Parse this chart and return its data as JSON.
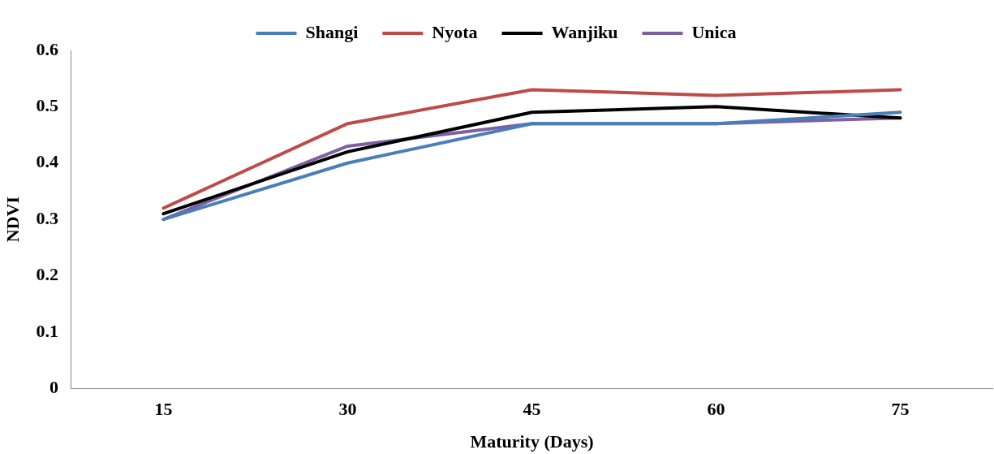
{
  "chart_data": {
    "type": "line",
    "xlabel": "Maturity (Days)",
    "ylabel": "NDVI",
    "categories": [
      "15",
      "30",
      "45",
      "60",
      "75"
    ],
    "series": [
      {
        "name": "Shangi",
        "color": "#4a7ebb",
        "values": [
          0.3,
          0.4,
          0.47,
          0.47,
          0.49
        ]
      },
      {
        "name": "Nyota",
        "color": "#be4b48",
        "values": [
          0.32,
          0.47,
          0.53,
          0.52,
          0.53
        ]
      },
      {
        "name": "Wanjiku",
        "color": "#000000",
        "values": [
          0.31,
          0.42,
          0.49,
          0.5,
          0.48
        ]
      },
      {
        "name": "Unica",
        "color": "#7d60a0",
        "values": [
          0.3,
          0.43,
          0.47,
          0.47,
          0.48
        ]
      }
    ],
    "ylim": [
      0,
      0.6
    ],
    "yticks": [
      0,
      0.1,
      0.2,
      0.3,
      0.4,
      0.5,
      0.6
    ],
    "grid": false,
    "legend": "top",
    "marker": "none",
    "line_style": "solid"
  }
}
